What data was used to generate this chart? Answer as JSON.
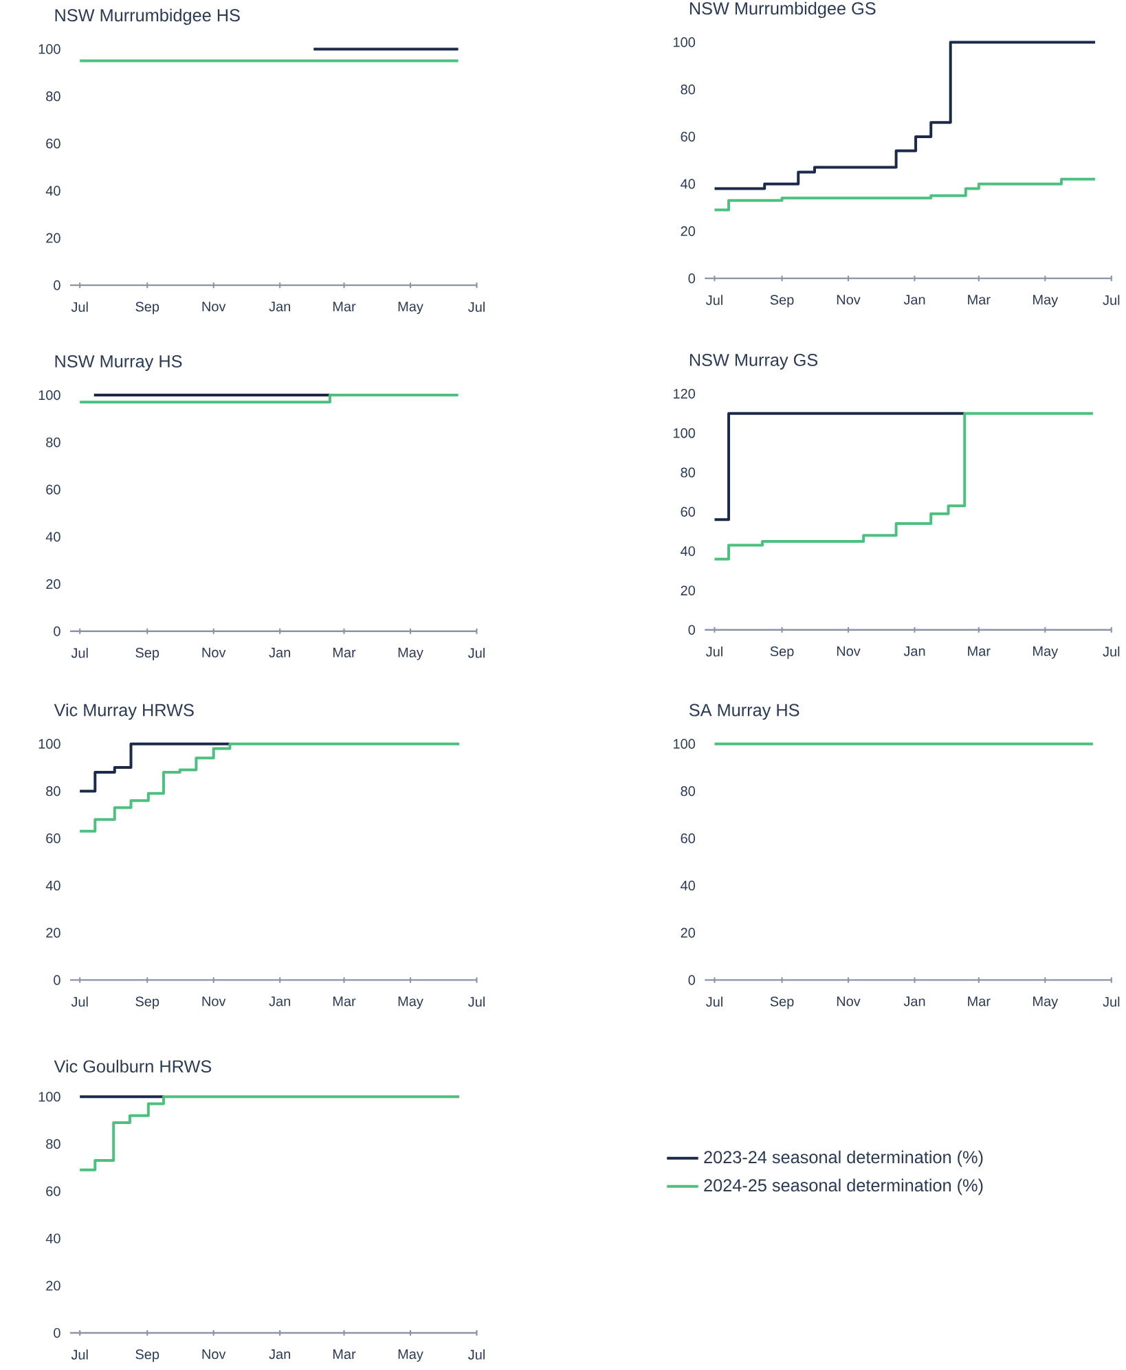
{
  "chart_data": [
    {
      "type": "step",
      "title": "NSW Murrumbidgee HS",
      "xlim": [
        "2024-06-22",
        "2025-07-01"
      ],
      "xticks": [
        {
          "value": "2024-07-01",
          "label": "Jul"
        },
        {
          "value": "2024-09-01",
          "label": "Sep"
        },
        {
          "value": "2024-11-01",
          "label": "Nov"
        },
        {
          "value": "2025-01-01",
          "label": "Jan"
        },
        {
          "value": "2025-03-01",
          "label": "Mar"
        },
        {
          "value": "2025-05-01",
          "label": "May"
        },
        {
          "value": "2025-07-01",
          "label": "Jul"
        }
      ],
      "ylim": [
        0,
        100
      ],
      "yticks": [
        0,
        20,
        40,
        60,
        80,
        100
      ],
      "series": [
        {
          "color": "#1b2a4a",
          "x": [
            "2025-02-01",
            "2025-06-14"
          ],
          "values": [
            100,
            100
          ]
        },
        {
          "color": "#4cc17f",
          "x": [
            "2024-07-01",
            "2025-06-14"
          ],
          "values": [
            95,
            95
          ]
        }
      ]
    },
    {
      "type": "step",
      "title": "NSW Murrumbidgee GS",
      "xlim": [
        "2024-06-22",
        "2025-07-01"
      ],
      "xticks": [
        {
          "value": "2024-07-01",
          "label": "Jul"
        },
        {
          "value": "2024-09-01",
          "label": "Sep"
        },
        {
          "value": "2024-11-01",
          "label": "Nov"
        },
        {
          "value": "2025-01-01",
          "label": "Jan"
        },
        {
          "value": "2025-03-01",
          "label": "Mar"
        },
        {
          "value": "2025-05-01",
          "label": "May"
        },
        {
          "value": "2025-07-01",
          "label": "Jul"
        }
      ],
      "ylim": [
        0,
        100
      ],
      "yticks": [
        0,
        20,
        40,
        60,
        80,
        100
      ],
      "series": [
        {
          "color": "#1b2a4a",
          "x": [
            "2024-07-01",
            "2024-08-16",
            "2024-09-16",
            "2024-10-01",
            "2024-12-15",
            "2025-01-02",
            "2025-01-16",
            "2025-02-03",
            "2025-06-16"
          ],
          "values": [
            38,
            40,
            45,
            47,
            54,
            60,
            66,
            100,
            100
          ]
        },
        {
          "color": "#4cc17f",
          "x": [
            "2024-07-01",
            "2024-07-14",
            "2024-09-01",
            "2025-01-16",
            "2025-02-17",
            "2025-03-01",
            "2025-05-16",
            "2025-06-16"
          ],
          "values": [
            29,
            33,
            34,
            35,
            38,
            40,
            42,
            42
          ]
        }
      ]
    },
    {
      "type": "step",
      "title": "NSW Murray HS",
      "xlim": [
        "2024-06-22",
        "2025-07-01"
      ],
      "xticks": [
        {
          "value": "2024-07-01",
          "label": "Jul"
        },
        {
          "value": "2024-09-01",
          "label": "Sep"
        },
        {
          "value": "2024-11-01",
          "label": "Nov"
        },
        {
          "value": "2025-01-01",
          "label": "Jan"
        },
        {
          "value": "2025-03-01",
          "label": "Mar"
        },
        {
          "value": "2025-05-01",
          "label": "May"
        },
        {
          "value": "2025-07-01",
          "label": "Jul"
        }
      ],
      "ylim": [
        0,
        100
      ],
      "yticks": [
        0,
        20,
        40,
        60,
        80,
        100
      ],
      "series": [
        {
          "color": "#1b2a4a",
          "x": [
            "2024-07-14",
            "2025-02-16"
          ],
          "values": [
            100,
            100
          ]
        },
        {
          "color": "#4cc17f",
          "x": [
            "2024-07-01",
            "2025-02-16",
            "2025-06-14"
          ],
          "values": [
            97,
            100,
            100
          ]
        }
      ]
    },
    {
      "type": "step",
      "title": "NSW Murray GS",
      "xlim": [
        "2024-06-22",
        "2025-07-01"
      ],
      "xticks": [
        {
          "value": "2024-07-01",
          "label": "Jul"
        },
        {
          "value": "2024-09-01",
          "label": "Sep"
        },
        {
          "value": "2024-11-01",
          "label": "Nov"
        },
        {
          "value": "2025-01-01",
          "label": "Jan"
        },
        {
          "value": "2025-03-01",
          "label": "Mar"
        },
        {
          "value": "2025-05-01",
          "label": "May"
        },
        {
          "value": "2025-07-01",
          "label": "Jul"
        }
      ],
      "ylim": [
        0,
        120
      ],
      "yticks": [
        0,
        20,
        40,
        60,
        80,
        100,
        120
      ],
      "series": [
        {
          "color": "#1b2a4a",
          "x": [
            "2024-07-01",
            "2024-07-14",
            "2025-02-16"
          ],
          "values": [
            56,
            110,
            110
          ]
        },
        {
          "color": "#4cc17f",
          "x": [
            "2024-07-01",
            "2024-07-14",
            "2024-08-14",
            "2024-11-15",
            "2024-12-15",
            "2025-01-16",
            "2025-02-01",
            "2025-02-16",
            "2025-06-14"
          ],
          "values": [
            36,
            43,
            45,
            48,
            54,
            59,
            63,
            110,
            110
          ]
        }
      ]
    },
    {
      "type": "step",
      "title": "Vic Murray HRWS",
      "xlim": [
        "2024-06-22",
        "2025-07-01"
      ],
      "xticks": [
        {
          "value": "2024-07-01",
          "label": "Jul"
        },
        {
          "value": "2024-09-01",
          "label": "Sep"
        },
        {
          "value": "2024-11-01",
          "label": "Nov"
        },
        {
          "value": "2025-01-01",
          "label": "Jan"
        },
        {
          "value": "2025-03-01",
          "label": "Mar"
        },
        {
          "value": "2025-05-01",
          "label": "May"
        },
        {
          "value": "2025-07-01",
          "label": "Jul"
        }
      ],
      "ylim": [
        0,
        100
      ],
      "yticks": [
        0,
        20,
        40,
        60,
        80,
        100
      ],
      "series": [
        {
          "color": "#1b2a4a",
          "x": [
            "2024-07-01",
            "2024-07-15",
            "2024-08-02",
            "2024-08-17",
            "2024-11-16"
          ],
          "values": [
            80,
            88,
            90,
            100,
            100
          ]
        },
        {
          "color": "#4cc17f",
          "x": [
            "2024-07-01",
            "2024-07-15",
            "2024-08-02",
            "2024-08-17",
            "2024-09-02",
            "2024-09-16",
            "2024-10-01",
            "2024-10-16",
            "2024-11-01",
            "2024-11-16",
            "2025-06-15"
          ],
          "values": [
            63,
            68,
            73,
            76,
            79,
            88,
            89,
            94,
            98,
            100,
            100
          ]
        }
      ]
    },
    {
      "type": "step",
      "title": "SA Murray HS",
      "xlim": [
        "2024-06-22",
        "2025-07-01"
      ],
      "xticks": [
        {
          "value": "2024-07-01",
          "label": "Jul"
        },
        {
          "value": "2024-09-01",
          "label": "Sep"
        },
        {
          "value": "2024-11-01",
          "label": "Nov"
        },
        {
          "value": "2025-01-01",
          "label": "Jan"
        },
        {
          "value": "2025-03-01",
          "label": "Mar"
        },
        {
          "value": "2025-05-01",
          "label": "May"
        },
        {
          "value": "2025-07-01",
          "label": "Jul"
        }
      ],
      "ylim": [
        0,
        100
      ],
      "yticks": [
        0,
        20,
        40,
        60,
        80,
        100
      ],
      "series": [
        {
          "color": "#4cc17f",
          "x": [
            "2024-07-01",
            "2025-06-14"
          ],
          "values": [
            100,
            100
          ]
        }
      ]
    },
    {
      "type": "step",
      "title": "Vic Goulburn HRWS",
      "xlim": [
        "2024-06-22",
        "2025-07-01"
      ],
      "xticks": [
        {
          "value": "2024-07-01",
          "label": "Jul"
        },
        {
          "value": "2024-09-01",
          "label": "Sep"
        },
        {
          "value": "2024-11-01",
          "label": "Nov"
        },
        {
          "value": "2025-01-01",
          "label": "Jan"
        },
        {
          "value": "2025-03-01",
          "label": "Mar"
        },
        {
          "value": "2025-05-01",
          "label": "May"
        },
        {
          "value": "2025-07-01",
          "label": "Jul"
        }
      ],
      "ylim": [
        0,
        100
      ],
      "yticks": [
        0,
        20,
        40,
        60,
        80,
        100
      ],
      "legend": "right",
      "series": [
        {
          "name": "2023-24 seasonal determination (%)",
          "color": "#1b2a4a",
          "x": [
            "2024-07-01",
            "2024-09-16"
          ],
          "values": [
            100,
            100
          ]
        },
        {
          "name": "2024-25 seasonal determination (%)",
          "color": "#4cc17f",
          "x": [
            "2024-07-01",
            "2024-07-15",
            "2024-08-01",
            "2024-08-16",
            "2024-09-02",
            "2024-09-16",
            "2025-06-15"
          ],
          "values": [
            69,
            73,
            89,
            92,
            97,
            100,
            100
          ]
        }
      ]
    }
  ]
}
